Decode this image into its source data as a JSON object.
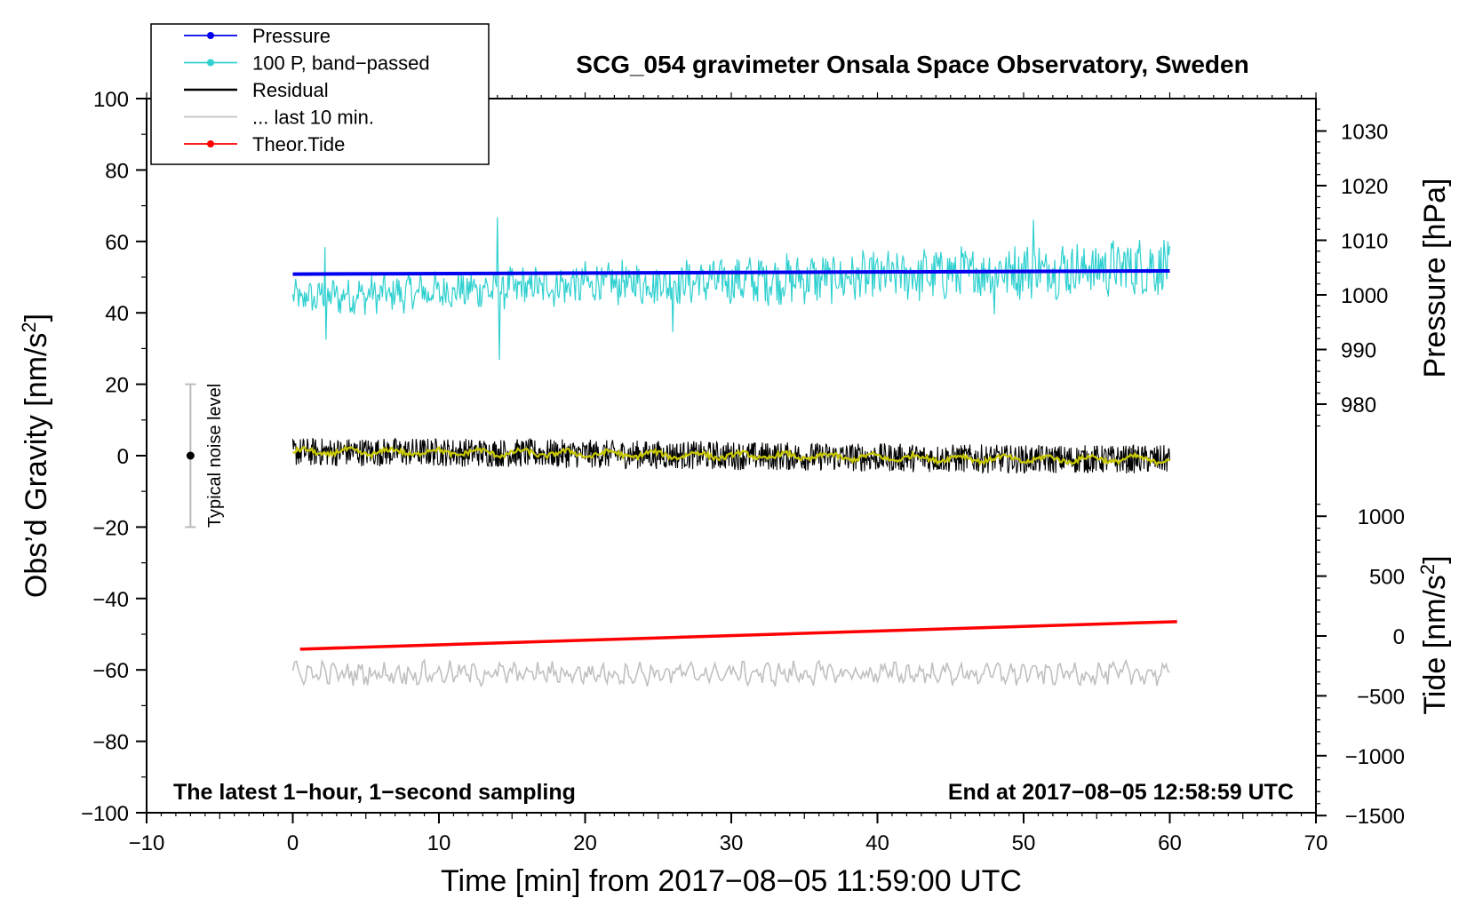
{
  "chart_data": {
    "type": "line",
    "title": "SCG_054 gravimeter Onsala Space Observatory, Sweden",
    "xlabel": "Time [min] from 2017−08−05 11:59:00 UTC",
    "xlim": [
      -10,
      70
    ],
    "x_ticks": [
      -10,
      0,
      10,
      20,
      30,
      40,
      50,
      60,
      70
    ],
    "x_tick_labels": [
      "−10",
      "0",
      "10",
      "20",
      "30",
      "40",
      "50",
      "60",
      "70"
    ],
    "left_axis": {
      "label": "Obs’d Gravity [nm/s2]",
      "label_main": "Obs’d Gravity [nm/s",
      "label_sup": "2",
      "label_end": "]",
      "ylim": [
        -100,
        100
      ],
      "ticks": [
        -100,
        -80,
        -60,
        -40,
        -20,
        0,
        20,
        40,
        60,
        80,
        100
      ],
      "tick_labels": [
        "−100",
        "−80",
        "−60",
        "−40",
        "−20",
        "0",
        "20",
        "40",
        "60",
        "80",
        "100"
      ]
    },
    "pressure_axis": {
      "label": "Pressure [hPa]",
      "ticks": [
        980,
        990,
        1000,
        1010,
        1020,
        1030
      ],
      "tick_labels": [
        "980",
        "990",
        "1000",
        "1010",
        "1020",
        "1030"
      ]
    },
    "tide_axis": {
      "label": "Tide [nm/s2]",
      "label_main": "Tide [nm/s",
      "label_sup": "2",
      "label_end": "]",
      "ticks": [
        -1500,
        -1000,
        -500,
        0,
        500,
        1000
      ],
      "tick_labels": [
        "−1500",
        "−1000",
        "−500",
        "0",
        "500",
        "1000"
      ]
    },
    "series": [
      {
        "name": "Pressure",
        "color": "#0000ee",
        "axis": "pressure",
        "x": [
          0,
          60
        ],
        "values": [
          1003.8,
          1004.4
        ]
      },
      {
        "name": "100 P, band−passed",
        "color": "#30d0d0",
        "axis": "gravity",
        "x": [
          0,
          10,
          20,
          30,
          40,
          50,
          60
        ],
        "values": [
          44,
          46,
          48,
          49,
          50,
          52,
          53
        ]
      },
      {
        "name": "Residual",
        "color": "#000000",
        "axis": "gravity",
        "x": [
          0,
          10,
          20,
          30,
          40,
          50,
          60
        ],
        "values": [
          1,
          1,
          0.5,
          0,
          -0.5,
          -1,
          -1
        ]
      },
      {
        "name": "... last 10 min.",
        "color": "#c0c0c0",
        "axis": "gravity",
        "x": [
          0,
          60
        ],
        "values": [
          -61,
          -61
        ]
      },
      {
        "name": "Theor.Tide",
        "color": "#ff0000",
        "axis": "tide",
        "x": [
          0.5,
          60.5
        ],
        "values": [
          -110,
          120
        ]
      }
    ],
    "smoothed_residual_color": "#c8c800",
    "noise_bar": {
      "x": -7,
      "center": 0,
      "low": -20,
      "high": 20,
      "label": "Typical noise level"
    },
    "annotations": {
      "bottom_left": "The latest 1−hour, 1−second sampling",
      "bottom_right": "End at 2017−08−05 12:58:59 UTC"
    },
    "legend": {
      "position": "top-left",
      "entries": [
        {
          "label": "Pressure",
          "color": "#0000ee",
          "marker": true
        },
        {
          "label": "100 P, band−passed",
          "color": "#30d0d0",
          "marker": true
        },
        {
          "label": "Residual",
          "color": "#000000",
          "marker": false
        },
        {
          "label": "... last 10 min.",
          "color": "#c0c0c0",
          "marker": false
        },
        {
          "label": "Theor.Tide",
          "color": "#ff0000",
          "marker": true
        }
      ]
    }
  }
}
